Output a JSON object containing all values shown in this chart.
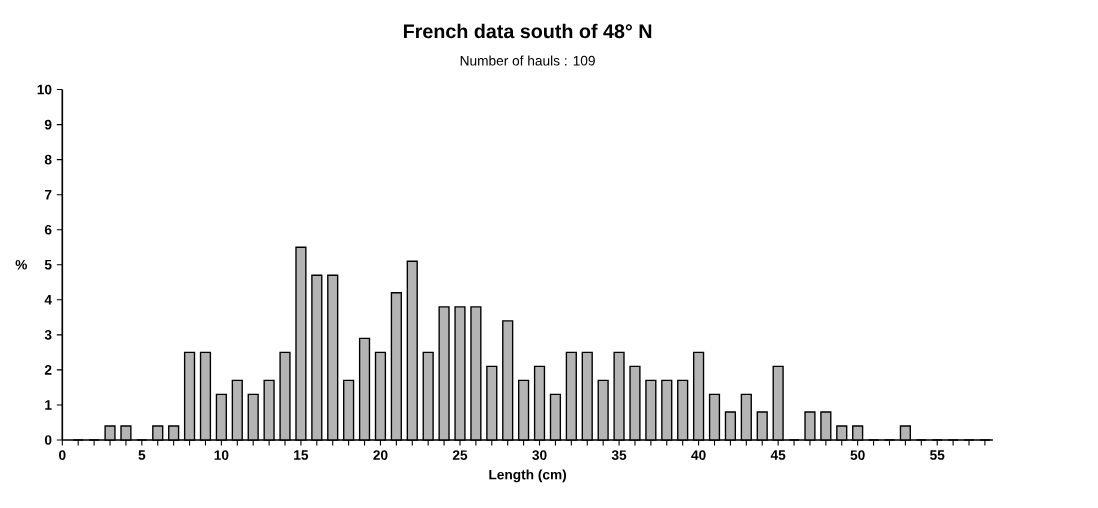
{
  "chart_data": {
    "type": "bar",
    "title": "French data south of 48° N",
    "subtitle": "Number of hauls : 109",
    "xlabel": "Length (cm)",
    "ylabel": "%",
    "x": [
      1,
      2,
      3,
      4,
      5,
      6,
      7,
      8,
      9,
      10,
      11,
      12,
      13,
      14,
      15,
      16,
      17,
      18,
      19,
      20,
      21,
      22,
      23,
      24,
      25,
      26,
      27,
      28,
      29,
      30,
      31,
      32,
      33,
      34,
      35,
      36,
      37,
      38,
      39,
      40,
      41,
      42,
      43,
      44,
      45,
      46,
      47,
      48,
      49,
      50,
      51,
      52,
      53,
      54,
      55,
      56,
      57,
      58
    ],
    "values": [
      0,
      0,
      0.4,
      0.4,
      0,
      0.4,
      0.4,
      2.5,
      2.5,
      1.3,
      1.7,
      1.3,
      1.7,
      2.5,
      5.5,
      4.7,
      4.7,
      1.7,
      2.9,
      2.5,
      4.2,
      5.1,
      2.5,
      3.8,
      3.8,
      3.8,
      2.1,
      3.4,
      1.7,
      2.1,
      1.3,
      2.5,
      2.5,
      1.7,
      2.5,
      2.1,
      1.7,
      1.7,
      1.7,
      2.5,
      1.3,
      0.8,
      1.3,
      0.8,
      2.1,
      0,
      0.8,
      0.8,
      0.4,
      0.4,
      0,
      0,
      0.4,
      0,
      0,
      0,
      0,
      0
    ],
    "color": "#b4b4b4",
    "xlim": [
      0,
      58.5
    ],
    "xticks": [
      0,
      {
        "value": 1,
        "label": null
      },
      {
        "value": 2,
        "label": null
      },
      {
        "value": 3,
        "label": null
      },
      {
        "value": 4,
        "label": null
      },
      5,
      {
        "value": 6,
        "label": null
      },
      {
        "value": 7,
        "label": null
      },
      {
        "value": 8,
        "label": null
      },
      {
        "value": 9,
        "label": null
      },
      10,
      {
        "value": 11,
        "label": null
      },
      {
        "value": 12,
        "label": null
      },
      {
        "value": 13,
        "label": null
      },
      {
        "value": 14,
        "label": null
      },
      15,
      {
        "value": 16,
        "label": null
      },
      {
        "value": 17,
        "label": null
      },
      {
        "value": 18,
        "label": null
      },
      {
        "value": 19,
        "label": null
      },
      20,
      {
        "value": 21,
        "label": null
      },
      {
        "value": 22,
        "label": null
      },
      {
        "value": 23,
        "label": null
      },
      {
        "value": 24,
        "label": null
      },
      25,
      {
        "value": 26,
        "label": null
      },
      {
        "value": 27,
        "label": null
      },
      {
        "value": 28,
        "label": null
      },
      {
        "value": 29,
        "label": null
      },
      30,
      {
        "value": 31,
        "label": null
      },
      {
        "value": 32,
        "label": null
      },
      {
        "value": 33,
        "label": null
      },
      {
        "value": 34,
        "label": null
      },
      35,
      {
        "value": 36,
        "label": null
      },
      {
        "value": 37,
        "label": null
      },
      {
        "value": 38,
        "label": null
      },
      {
        "value": 39,
        "label": null
      },
      40,
      {
        "value": 41,
        "label": null
      },
      {
        "value": 42,
        "label": null
      },
      {
        "value": 43,
        "label": null
      },
      {
        "value": 44,
        "label": null
      },
      45,
      {
        "value": 46,
        "label": null
      },
      {
        "value": 47,
        "label": null
      },
      {
        "value": 48,
        "label": null
      },
      {
        "value": 49,
        "label": null
      },
      50,
      {
        "value": 51,
        "label": null
      },
      {
        "value": 52,
        "label": null
      },
      {
        "value": 53,
        "label": null
      },
      {
        "value": 54,
        "label": null
      },
      55,
      {
        "value": 56,
        "label": null
      },
      {
        "value": 57,
        "label": null
      },
      {
        "value": 58,
        "label": null
      }
    ],
    "ylim": [
      0,
      10
    ],
    "yticks": [
      0,
      1,
      2,
      3,
      4,
      5,
      6,
      7,
      8,
      9,
      10
    ],
    "grid": false
  }
}
